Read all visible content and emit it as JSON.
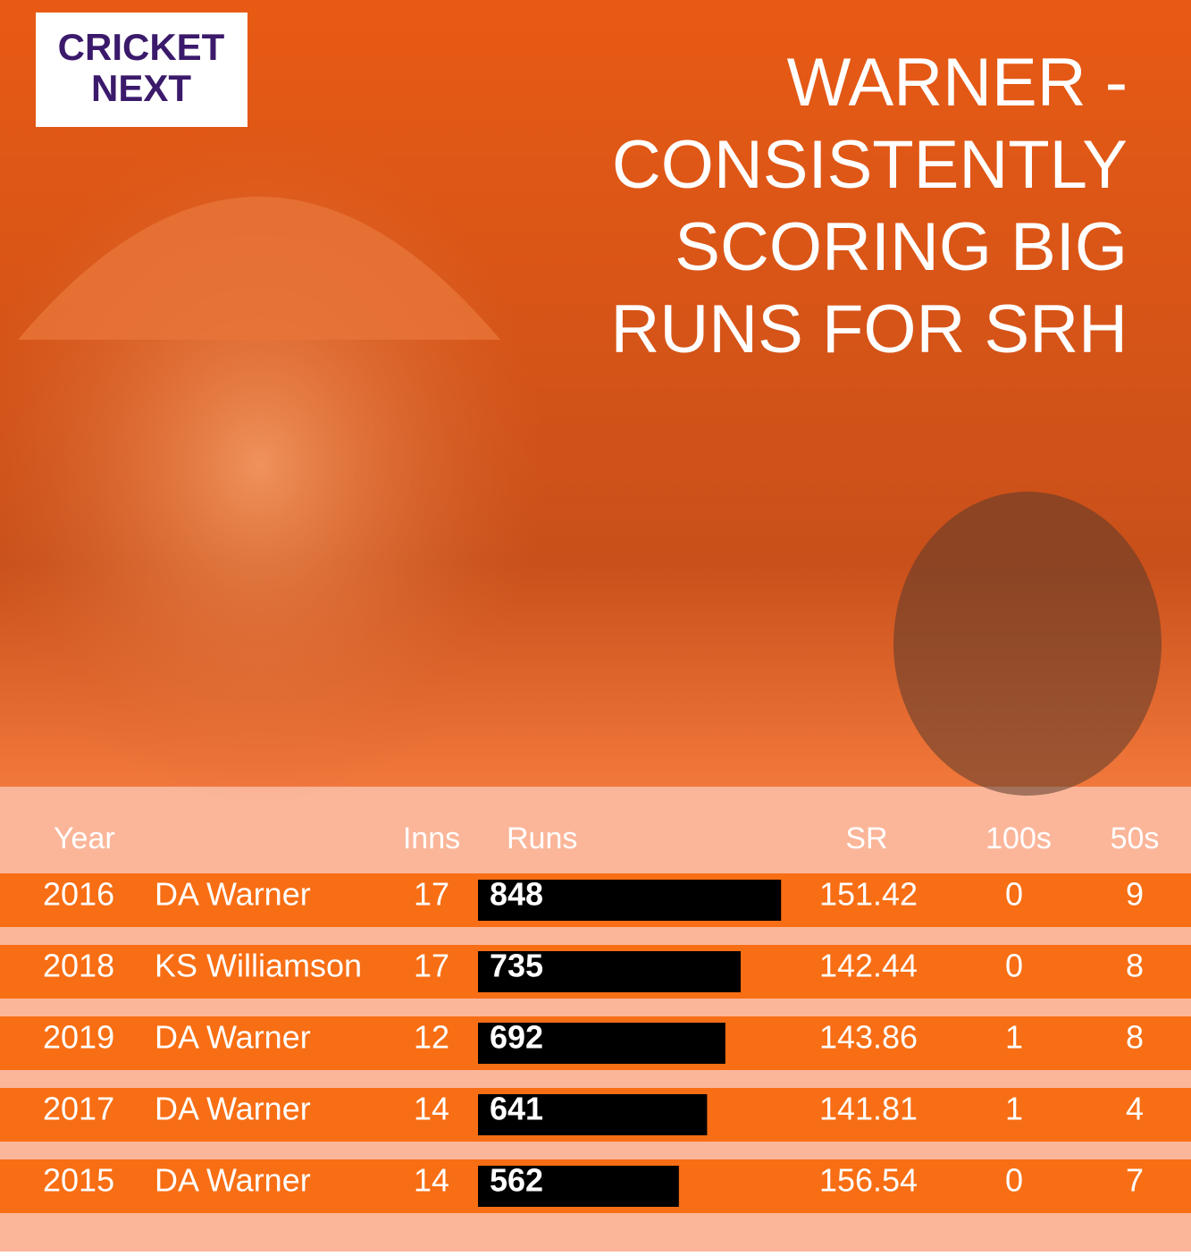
{
  "logo": {
    "line1": "CRICKET",
    "line2": "NEXT"
  },
  "title_lines": [
    "WARNER -",
    "CONSISTENTLY",
    "SCORING BIG",
    "RUNS FOR SRH"
  ],
  "table": {
    "headers": {
      "year": "Year",
      "inns": "Inns",
      "runs": "Runs",
      "sr": "SR",
      "hundreds": "100s",
      "fifties": "50s"
    },
    "rows": [
      {
        "year": 2016,
        "player": "DA Warner",
        "inns": 17,
        "runs": 848,
        "sr": 151.42,
        "hundreds": 0,
        "fifties": 9
      },
      {
        "year": 2018,
        "player": "KS Williamson",
        "inns": 17,
        "runs": 735,
        "sr": 142.44,
        "hundreds": 0,
        "fifties": 8
      },
      {
        "year": 2019,
        "player": "DA Warner",
        "inns": 12,
        "runs": 692,
        "sr": 143.86,
        "hundreds": 1,
        "fifties": 8
      },
      {
        "year": 2017,
        "player": "DA Warner",
        "inns": 14,
        "runs": 641,
        "sr": 141.81,
        "hundreds": 1,
        "fifties": 4
      },
      {
        "year": 2015,
        "player": "DA Warner",
        "inns": 14,
        "runs": 562,
        "sr": 156.54,
        "hundreds": 0,
        "fifties": 7
      }
    ]
  }
}
